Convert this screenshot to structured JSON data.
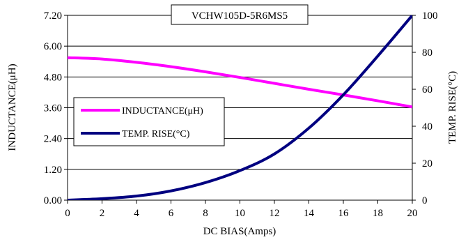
{
  "chart_data": {
    "type": "line",
    "title": "VCHW105D-5R6MS5",
    "xlabel": "DC BIAS(Amps)",
    "ylabel": "INDUCTANCE(μH)",
    "y2label": "TEMP. RISE(°C)",
    "xlim": [
      0,
      20
    ],
    "ylim": [
      0,
      7.2
    ],
    "y2lim": [
      0,
      100
    ],
    "grid": "horizontal",
    "legend_position": "left-middle",
    "x_ticks": [
      "0",
      "2",
      "4",
      "6",
      "8",
      "10",
      "12",
      "14",
      "16",
      "18",
      "20"
    ],
    "y_ticks": [
      "0.00",
      "1.20",
      "2.40",
      "3.60",
      "4.80",
      "6.00",
      "7.20"
    ],
    "y2_ticks": [
      "0",
      "20",
      "40",
      "60",
      "80",
      "100"
    ],
    "series": [
      {
        "name": "INDUCTANCE(μH)",
        "axis": "left",
        "color": "#ff00ff",
        "x": [
          0,
          2,
          4,
          6,
          8,
          10,
          12,
          14,
          16,
          18,
          20
        ],
        "y": [
          5.55,
          5.5,
          5.37,
          5.2,
          5.0,
          4.78,
          4.55,
          4.32,
          4.1,
          3.87,
          3.63
        ]
      },
      {
        "name": "TEMP. RISE(°C)",
        "axis": "right",
        "color": "#000080",
        "x": [
          0,
          2,
          4,
          6,
          8,
          10,
          12,
          14,
          16,
          18,
          20
        ],
        "y": [
          0,
          0.8,
          2.2,
          5,
          9.5,
          16,
          25,
          39,
          57,
          78,
          100
        ]
      }
    ]
  }
}
